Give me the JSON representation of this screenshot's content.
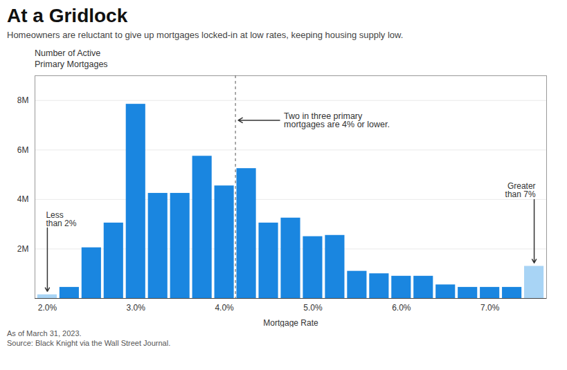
{
  "chart_data": {
    "type": "bar",
    "title": "At a Gridlock",
    "subtitle": "Homeowners are reluctant to give up mortgages locked-in at low rates, keeping housing supply low.",
    "xlabel": "Mortgage Rate",
    "ylabel": "Number of Active\nPrimary Mortgages",
    "categories": [
      "2.0%",
      null,
      null,
      null,
      "3.0%",
      null,
      null,
      null,
      "4.0%",
      null,
      null,
      null,
      "5.0%",
      null,
      null,
      null,
      "6.0%",
      null,
      null,
      null,
      "7.0%",
      null,
      null
    ],
    "values": [
      0.15,
      0.45,
      2.05,
      3.05,
      7.85,
      4.25,
      4.25,
      5.75,
      4.55,
      5.25,
      3.05,
      3.25,
      2.5,
      2.55,
      1.1,
      1.0,
      0.9,
      0.9,
      0.55,
      0.45,
      0.45,
      0.45,
      1.3
    ],
    "colors": [
      "#a8d4f5",
      "#1a86e0",
      "#1a86e0",
      "#1a86e0",
      "#1a86e0",
      "#1a86e0",
      "#1a86e0",
      "#1a86e0",
      "#1a86e0",
      "#1a86e0",
      "#1a86e0",
      "#1a86e0",
      "#1a86e0",
      "#1a86e0",
      "#1a86e0",
      "#1a86e0",
      "#1a86e0",
      "#1a86e0",
      "#1a86e0",
      "#1a86e0",
      "#1a86e0",
      "#1a86e0",
      "#a8d4f5"
    ],
    "ylim": [
      0,
      9
    ],
    "yticks": [
      {
        "value": 2,
        "label": "2M"
      },
      {
        "value": 4,
        "label": "4M"
      },
      {
        "value": 6,
        "label": "6M"
      },
      {
        "value": 8,
        "label": "8M"
      }
    ],
    "grid": true,
    "annotations": [
      {
        "text": "Two in three primary\nmortgages are 4% or lower.",
        "index": 8,
        "line_style": "dashed"
      },
      {
        "text": "Less\nthan 2%",
        "index": 0
      },
      {
        "text": "Greater\nthan 7%",
        "index": 22
      }
    ],
    "footnotes": [
      "As of March 31, 2023.",
      "Source: Black Knight via the Wall Street Journal."
    ]
  }
}
